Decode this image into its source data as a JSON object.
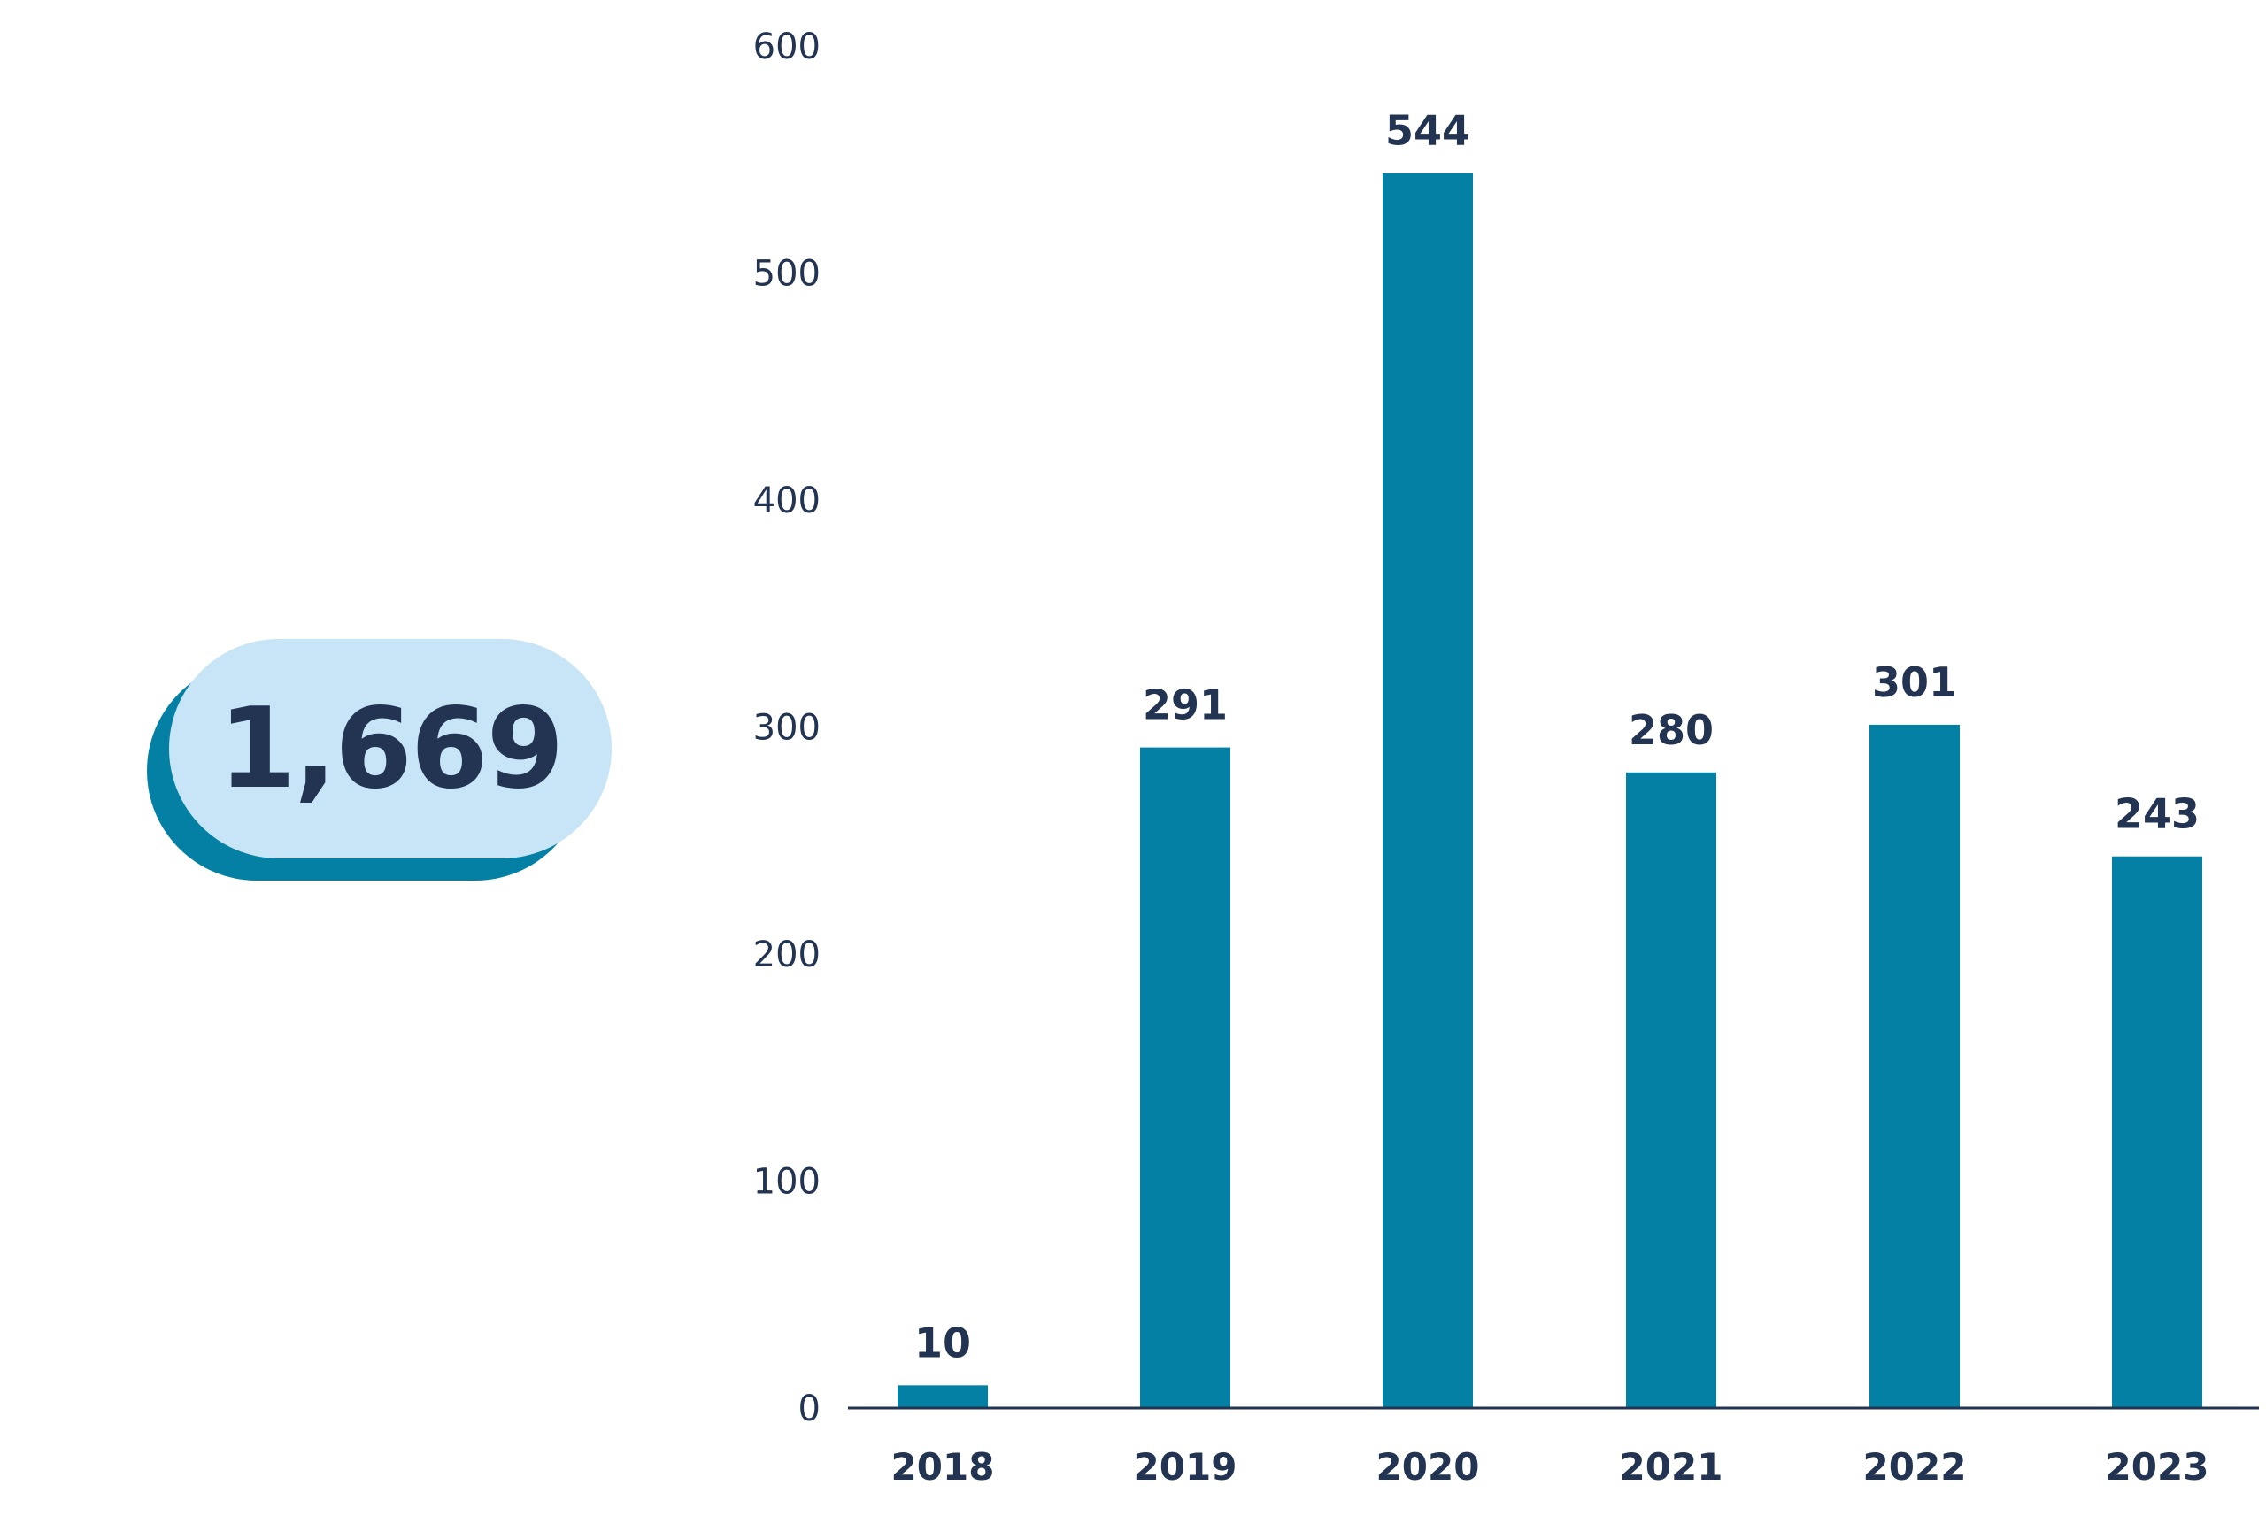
{
  "total": {
    "value": "1,669"
  },
  "colors": {
    "bar": "#0380a3",
    "badge_face": "#c7e5f7",
    "badge_shadow": "#0380a3",
    "text": "#223452",
    "axis": "#223452"
  },
  "chart_data": {
    "type": "bar",
    "categories": [
      "2018",
      "2019",
      "2020",
      "2021",
      "2022",
      "2023"
    ],
    "values": [
      10,
      291,
      544,
      280,
      301,
      243
    ],
    "data_labels": [
      "10",
      "291",
      "544",
      "280",
      "301",
      "243"
    ],
    "yticks": [
      "0",
      "100",
      "200",
      "300",
      "400",
      "500",
      "600"
    ],
    "ylim": [
      0,
      600
    ],
    "title": "",
    "xlabel": "",
    "ylabel": "",
    "grid": false,
    "legend": "none"
  }
}
